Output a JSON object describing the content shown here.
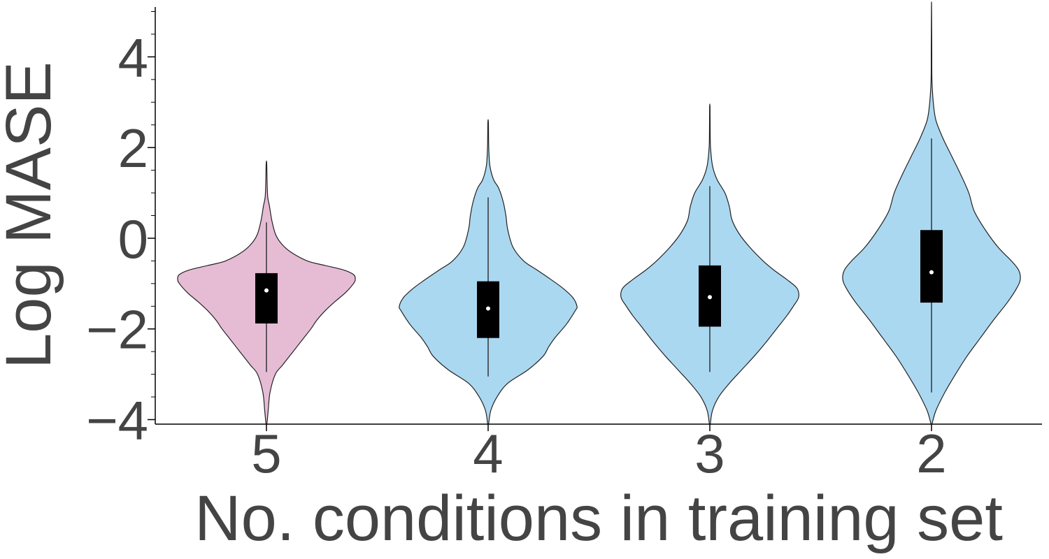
{
  "chart_data": {
    "type": "violin",
    "xlabel": "No. conditions in training set",
    "ylabel": "Log MASE",
    "ylim": [
      -4.1,
      5.1
    ],
    "yticks": [
      -4,
      -2,
      0,
      2,
      4
    ],
    "yticklabels": [
      "−4",
      "−2",
      "0",
      "2",
      "4"
    ],
    "yminor_step": 0.5,
    "categories": [
      "5",
      "4",
      "3",
      "2"
    ],
    "grid": false,
    "colors": {
      "highlight": "#e6bcd5",
      "default": "#abd8f1",
      "outline": "#222222",
      "box": "#000000",
      "median": "#ffffff",
      "axis": "#000000",
      "text": "#444444"
    },
    "violins": [
      {
        "category": "5",
        "color_key": "highlight",
        "median": -1.15,
        "q1": -1.88,
        "q3": -0.77,
        "whisker_low": -2.95,
        "whisker_high": 0.35,
        "min": -4.1,
        "max": 1.65,
        "profile": [
          [
            -4.1,
            0.005
          ],
          [
            -3.8,
            0.02
          ],
          [
            -3.4,
            0.04
          ],
          [
            -3.0,
            0.1
          ],
          [
            -2.8,
            0.18
          ],
          [
            -2.5,
            0.3
          ],
          [
            -2.2,
            0.42
          ],
          [
            -2.0,
            0.5
          ],
          [
            -1.8,
            0.57
          ],
          [
            -1.6,
            0.66
          ],
          [
            -1.4,
            0.77
          ],
          [
            -1.2,
            0.89
          ],
          [
            -1.0,
            0.98
          ],
          [
            -0.9,
            1.0
          ],
          [
            -0.8,
            0.98
          ],
          [
            -0.7,
            0.87
          ],
          [
            -0.6,
            0.66
          ],
          [
            -0.5,
            0.46
          ],
          [
            -0.3,
            0.27
          ],
          [
            -0.1,
            0.16
          ],
          [
            0.1,
            0.1
          ],
          [
            0.4,
            0.06
          ],
          [
            0.7,
            0.035
          ],
          [
            0.9,
            0.015
          ],
          [
            1.2,
            0.008
          ],
          [
            1.65,
            0.003
          ]
        ]
      },
      {
        "category": "4",
        "color_key": "default",
        "median": -1.55,
        "q1": -2.2,
        "q3": -0.95,
        "whisker_low": -3.05,
        "whisker_high": 0.9,
        "min": -4.1,
        "max": 2.55,
        "profile": [
          [
            -4.1,
            0.005
          ],
          [
            -3.8,
            0.03
          ],
          [
            -3.5,
            0.1
          ],
          [
            -3.2,
            0.22
          ],
          [
            -2.9,
            0.45
          ],
          [
            -2.6,
            0.62
          ],
          [
            -2.4,
            0.68
          ],
          [
            -2.2,
            0.75
          ],
          [
            -1.9,
            0.88
          ],
          [
            -1.6,
            0.98
          ],
          [
            -1.5,
            1.0
          ],
          [
            -1.3,
            0.95
          ],
          [
            -1.1,
            0.84
          ],
          [
            -0.9,
            0.7
          ],
          [
            -0.7,
            0.55
          ],
          [
            -0.5,
            0.4
          ],
          [
            -0.2,
            0.28
          ],
          [
            0.2,
            0.22
          ],
          [
            0.5,
            0.2
          ],
          [
            0.8,
            0.17
          ],
          [
            1.1,
            0.12
          ],
          [
            1.3,
            0.06
          ],
          [
            1.6,
            0.02
          ],
          [
            2.0,
            0.007
          ],
          [
            2.55,
            0.003
          ]
        ]
      },
      {
        "category": "3",
        "color_key": "default",
        "median": -1.3,
        "q1": -1.95,
        "q3": -0.6,
        "whisker_low": -2.95,
        "whisker_high": 1.15,
        "min": -4.1,
        "max": 2.9,
        "profile": [
          [
            -4.1,
            0.005
          ],
          [
            -3.8,
            0.03
          ],
          [
            -3.5,
            0.1
          ],
          [
            -3.2,
            0.22
          ],
          [
            -2.9,
            0.36
          ],
          [
            -2.6,
            0.5
          ],
          [
            -2.3,
            0.63
          ],
          [
            -2.0,
            0.75
          ],
          [
            -1.7,
            0.87
          ],
          [
            -1.5,
            0.94
          ],
          [
            -1.3,
            1.0
          ],
          [
            -1.1,
            0.98
          ],
          [
            -0.9,
            0.86
          ],
          [
            -0.7,
            0.72
          ],
          [
            -0.5,
            0.6
          ],
          [
            -0.2,
            0.45
          ],
          [
            0.1,
            0.33
          ],
          [
            0.4,
            0.25
          ],
          [
            0.7,
            0.22
          ],
          [
            1.0,
            0.17
          ],
          [
            1.3,
            0.08
          ],
          [
            1.6,
            0.03
          ],
          [
            2.0,
            0.008
          ],
          [
            2.4,
            0.004
          ],
          [
            2.9,
            0.002
          ]
        ]
      },
      {
        "category": "2",
        "color_key": "default",
        "median": -0.75,
        "q1": -1.42,
        "q3": 0.18,
        "whisker_low": -3.4,
        "whisker_high": 2.2,
        "min": -4.1,
        "max": 5.1,
        "profile": [
          [
            -4.1,
            0.005
          ],
          [
            -3.8,
            0.05
          ],
          [
            -3.4,
            0.15
          ],
          [
            -3.0,
            0.27
          ],
          [
            -2.6,
            0.4
          ],
          [
            -2.2,
            0.55
          ],
          [
            -1.8,
            0.7
          ],
          [
            -1.4,
            0.86
          ],
          [
            -1.1,
            0.96
          ],
          [
            -0.9,
            1.0
          ],
          [
            -0.7,
            0.98
          ],
          [
            -0.5,
            0.9
          ],
          [
            -0.2,
            0.75
          ],
          [
            0.2,
            0.6
          ],
          [
            0.6,
            0.48
          ],
          [
            1.0,
            0.42
          ],
          [
            1.4,
            0.33
          ],
          [
            1.8,
            0.23
          ],
          [
            2.2,
            0.13
          ],
          [
            2.6,
            0.05
          ],
          [
            3.0,
            0.02
          ],
          [
            3.5,
            0.005
          ],
          [
            4.2,
            0.003
          ],
          [
            5.1,
            0.001
          ]
        ]
      }
    ]
  }
}
